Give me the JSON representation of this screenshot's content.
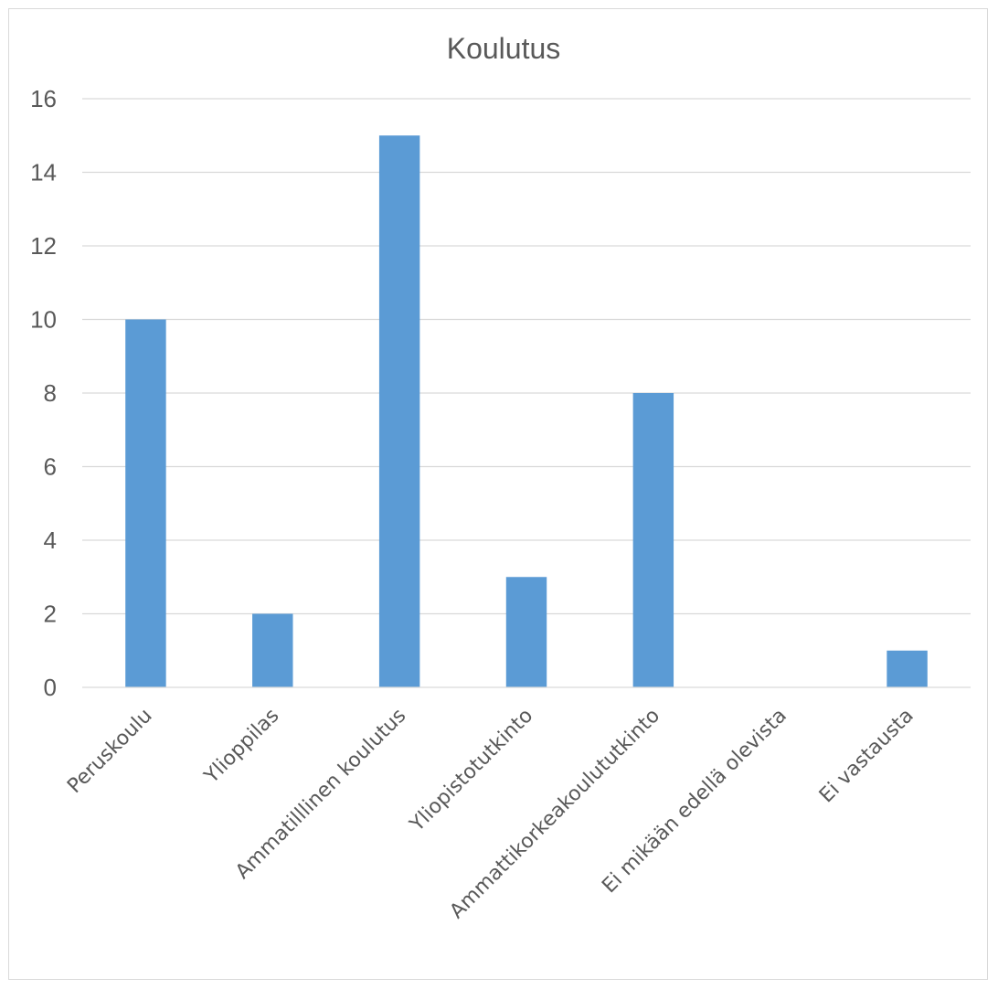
{
  "chart_data": {
    "type": "bar",
    "title": "Koulutus",
    "xlabel": "",
    "ylabel": "",
    "categories": [
      "Peruskoulu",
      "Ylioppilas",
      "Ammatilllinen koulutus",
      "Yliopistotutkinto",
      "Ammattikorkeakoulututkinto",
      "Ei mikään edellä olevista",
      "Ei vastausta"
    ],
    "values": [
      10,
      2,
      15,
      3,
      8,
      0,
      1
    ],
    "ylim": [
      0,
      16
    ],
    "yticks": [
      "0",
      "2",
      "4",
      "6",
      "8",
      "10",
      "12",
      "14",
      "16"
    ],
    "grid": true,
    "legend": "none",
    "colors": {
      "bar": "#5b9bd5",
      "grid": "#d9d9d9",
      "text": "#595959"
    }
  }
}
